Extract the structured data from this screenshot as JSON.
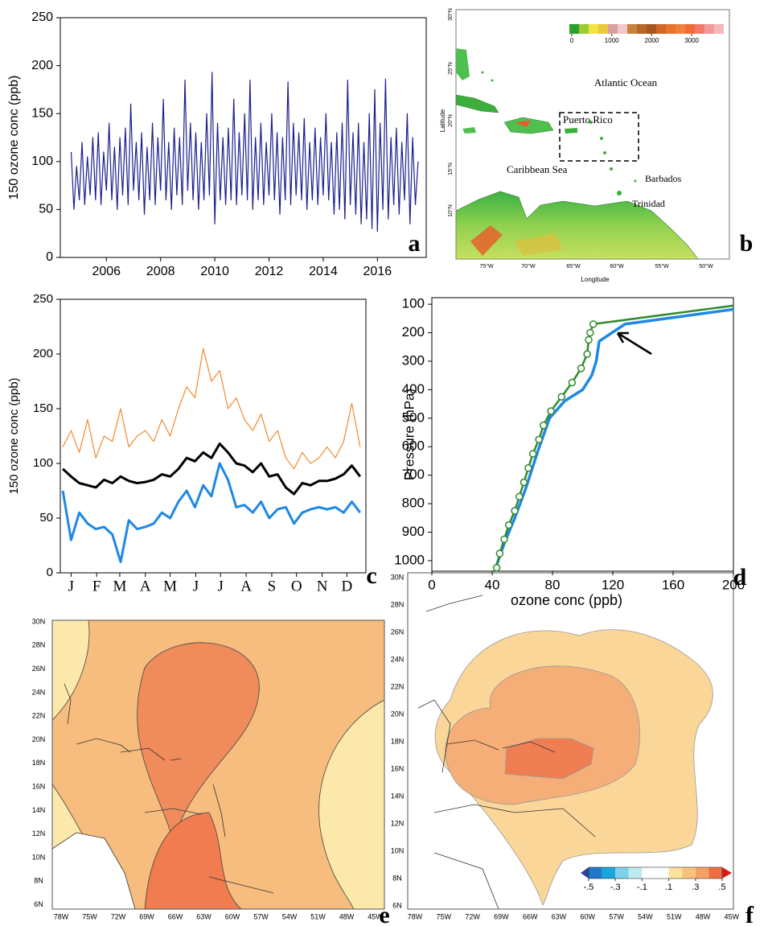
{
  "chart_data": [
    {
      "type": "line",
      "panel_label": "a",
      "y_label": "150 ozone conc (ppb)",
      "x": [
        2004.7,
        2004.8,
        2004.9,
        2005,
        2005.1,
        2005.2,
        2005.3,
        2005.4,
        2005.5,
        2005.6,
        2005.7,
        2005.8,
        2005.9,
        2006,
        2006.1,
        2006.2,
        2006.3,
        2006.4,
        2006.5,
        2006.6,
        2006.7,
        2006.8,
        2006.9,
        2007,
        2007.1,
        2007.2,
        2007.3,
        2007.4,
        2007.5,
        2007.6,
        2007.7,
        2007.8,
        2007.9,
        2008,
        2008.1,
        2008.2,
        2008.3,
        2008.4,
        2008.5,
        2008.6,
        2008.7,
        2008.8,
        2008.9,
        2009,
        2009.1,
        2009.2,
        2009.3,
        2009.4,
        2009.5,
        2009.6,
        2009.7,
        2009.8,
        2009.9,
        2010,
        2010.1,
        2010.2,
        2010.3,
        2010.4,
        2010.5,
        2010.6,
        2010.7,
        2010.8,
        2010.9,
        2011,
        2011.1,
        2011.2,
        2011.3,
        2011.4,
        2011.5,
        2011.6,
        2011.7,
        2011.8,
        2011.9,
        2012,
        2012.1,
        2012.2,
        2012.3,
        2012.4,
        2012.5,
        2012.6,
        2012.7,
        2012.8,
        2012.9,
        2013,
        2013.1,
        2013.2,
        2013.3,
        2013.4,
        2013.5,
        2013.6,
        2013.7,
        2013.8,
        2013.9,
        2014,
        2014.1,
        2014.2,
        2014.3,
        2014.4,
        2014.5,
        2014.6,
        2014.7,
        2014.8,
        2014.9,
        2015,
        2015.1,
        2015.2,
        2015.3,
        2015.4,
        2015.5,
        2015.6,
        2015.7,
        2015.8,
        2015.9,
        2016,
        2016.1,
        2016.2,
        2016.3,
        2016.4,
        2016.5,
        2016.6,
        2016.7,
        2016.8,
        2016.9,
        2017,
        2017.1,
        2017.2,
        2017.3,
        2017.4,
        2017.5
      ],
      "series": [
        {
          "color": "#1c1f8c",
          "values": [
            110,
            50,
            95,
            60,
            120,
            55,
            105,
            65,
            125,
            60,
            130,
            55,
            110,
            70,
            140,
            60,
            115,
            50,
            125,
            65,
            135,
            55,
            160,
            70,
            120,
            60,
            130,
            45,
            115,
            60,
            140,
            55,
            125,
            70,
            165,
            60,
            120,
            50,
            135,
            65,
            125,
            55,
            185,
            70,
            140,
            60,
            130,
            50,
            120,
            60,
            150,
            65,
            193,
            35,
            140,
            60,
            125,
            55,
            135,
            60,
            165,
            55,
            130,
            65,
            150,
            60,
            185,
            50,
            125,
            60,
            140,
            55,
            120,
            65,
            150,
            60,
            130,
            45,
            125,
            60,
            183,
            55,
            140,
            65,
            130,
            60,
            145,
            50,
            120,
            60,
            135,
            55,
            125,
            65,
            150,
            60,
            120,
            45,
            130,
            50,
            140,
            40,
            185,
            55,
            130,
            45,
            140,
            35,
            120,
            40,
            150,
            30,
            175,
            27,
            140,
            50,
            186,
            40,
            125,
            55,
            135,
            45,
            120,
            60,
            150,
            35,
            125,
            55,
            100
          ]
        }
      ],
      "xlim": [
        2004.3,
        2017.8
      ],
      "xticks": [
        2006,
        2008,
        2010,
        2012,
        2014,
        2016
      ],
      "ylim": [
        0,
        250
      ],
      "yticks": [
        0,
        50,
        100,
        150,
        200,
        250
      ]
    },
    {
      "type": "line",
      "panel_label": "c",
      "y_label": "150 ozone conc (ppb)",
      "x": [
        5,
        15,
        25,
        35,
        45,
        55,
        65,
        75,
        85,
        95,
        105,
        115,
        125,
        135,
        145,
        155,
        165,
        175,
        185,
        195,
        205,
        215,
        225,
        235,
        245,
        255,
        265,
        275,
        285,
        295,
        305,
        315,
        325,
        335,
        345,
        355,
        365
      ],
      "series": [
        {
          "color": "#f28a2e",
          "values": [
            115,
            130,
            110,
            140,
            105,
            125,
            120,
            150,
            115,
            125,
            130,
            120,
            140,
            125,
            150,
            170,
            160,
            205,
            175,
            185,
            150,
            160,
            140,
            130,
            145,
            120,
            130,
            105,
            95,
            110,
            100,
            105,
            115,
            105,
            120,
            155,
            115
          ]
        },
        {
          "color": "#000000",
          "values": [
            95,
            88,
            82,
            80,
            78,
            85,
            82,
            88,
            84,
            82,
            83,
            85,
            90,
            88,
            95,
            105,
            102,
            110,
            105,
            118,
            110,
            100,
            98,
            92,
            100,
            88,
            90,
            78,
            72,
            82,
            80,
            84,
            84,
            86,
            90,
            98,
            88
          ]
        },
        {
          "color": "#1e88e5",
          "values": [
            75,
            30,
            55,
            45,
            40,
            42,
            35,
            10,
            48,
            40,
            42,
            45,
            55,
            50,
            65,
            75,
            60,
            80,
            70,
            100,
            85,
            60,
            62,
            55,
            65,
            50,
            58,
            60,
            45,
            55,
            58,
            60,
            58,
            60,
            55,
            65,
            55
          ]
        }
      ],
      "xlim": [
        2,
        372
      ],
      "xticks": [
        {
          "value": 15,
          "label": "J"
        },
        {
          "value": 46,
          "label": "F"
        },
        {
          "value": 74,
          "label": "M"
        },
        {
          "value": 105,
          "label": "A"
        },
        {
          "value": 135,
          "label": "M"
        },
        {
          "value": 166,
          "label": "J"
        },
        {
          "value": 196,
          "label": "J"
        },
        {
          "value": 227,
          "label": "A"
        },
        {
          "value": 258,
          "label": "S"
        },
        {
          "value": 288,
          "label": "O"
        },
        {
          "value": 319,
          "label": "N"
        },
        {
          "value": 349,
          "label": "D"
        }
      ],
      "ylim": [
        0,
        250
      ],
      "yticks": [
        0,
        50,
        100,
        150,
        200,
        250
      ]
    },
    {
      "type": "line",
      "panel_label": "d",
      "y_label": "Pressure (hPa)",
      "x_label": "ozone conc (ppb)",
      "series": [
        {
          "color": "#1e88e5",
          "x": [
            43,
            48,
            55,
            62,
            70,
            78,
            88,
            100,
            106,
            109,
            111,
            128,
            200
          ],
          "values": [
            1015,
            940,
            850,
            750,
            620,
            500,
            440,
            400,
            350,
            300,
            230,
            170,
            118
          ]
        },
        {
          "color": "#2e8b2e",
          "markers": true,
          "x": [
            43,
            45,
            48,
            51,
            55,
            58,
            61,
            64,
            67,
            71,
            74,
            79,
            86,
            93,
            99,
            103,
            104,
            105,
            107,
            200
          ],
          "values": [
            1025,
            975,
            925,
            875,
            825,
            775,
            725,
            675,
            625,
            575,
            525,
            475,
            425,
            375,
            325,
            275,
            225,
            200,
            170,
            105
          ]
        }
      ],
      "xlim": [
        0,
        200
      ],
      "xticks": [
        0,
        40,
        80,
        120,
        160,
        200
      ],
      "ylim": [
        1037,
        77
      ],
      "yticks": [
        100,
        200,
        300,
        400,
        500,
        600,
        700,
        800,
        900,
        1000
      ]
    }
  ],
  "maps": [
    {
      "panel_label": "b",
      "x_label": "Longitude",
      "y_label": "Latitude",
      "lat_labels": [
        "10°N",
        "15°N",
        "20°N",
        "25°N",
        "30°N"
      ],
      "lon_labels": [
        "75°W",
        "70°W",
        "65°W",
        "60°W",
        "55°W",
        "50°W"
      ],
      "places": [
        "Atlantic Ocean",
        "Puerto Rico",
        "Caribbean Sea",
        "Barbados",
        "Trinidad"
      ],
      "colorbar_ticks": [
        0,
        1000,
        2000,
        3000
      ]
    },
    {
      "panel_label": "e",
      "lat_labels": [
        "30N",
        "28N",
        "26N",
        "24N",
        "22N",
        "20N",
        "18N",
        "16N",
        "14N",
        "12N",
        "10N",
        "8N",
        "6N"
      ],
      "lon_labels": [
        "78W",
        "75W",
        "72W",
        "69W",
        "66W",
        "63W",
        "60W",
        "57W",
        "54W",
        "51W",
        "48W",
        "45W"
      ]
    },
    {
      "panel_label": "f",
      "lat_labels": [
        "30N",
        "28N",
        "26N",
        "24N",
        "22N",
        "20N",
        "18N",
        "16N",
        "14N",
        "12N",
        "10N",
        "8N",
        "6N"
      ],
      "lon_labels": [
        "78W",
        "75W",
        "72W",
        "69W",
        "66W",
        "63W",
        "60W",
        "57W",
        "54W",
        "51W",
        "48W",
        "45W"
      ],
      "colorbar_ticks": [
        {
          "value": -0.5,
          "label": "-.5"
        },
        {
          "value": -0.3,
          "label": "-.3"
        },
        {
          "value": -0.1,
          "label": "-.1"
        },
        {
          "value": 0.1,
          "label": ".1"
        },
        {
          "value": 0.3,
          "label": ".3"
        },
        {
          "value": 0.5,
          "label": ".5"
        }
      ]
    }
  ]
}
